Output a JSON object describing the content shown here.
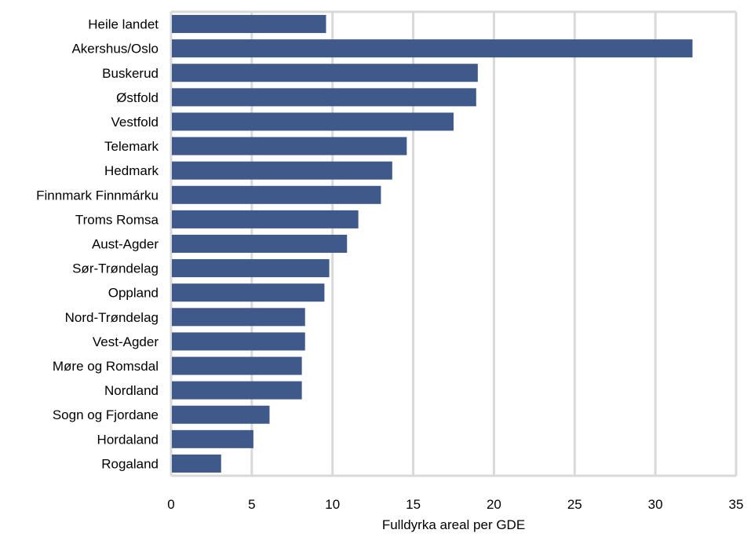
{
  "chart_data": {
    "type": "bar",
    "orientation": "horizontal",
    "categories": [
      "Heile landet",
      "Akershus/Oslo",
      "Buskerud",
      "Østfold",
      "Vestfold",
      "Telemark",
      "Hedmark",
      "Finnmark Finnmárku",
      "Troms Romsa",
      "Aust-Agder",
      "Sør-Trøndelag",
      "Oppland",
      "Nord-Trøndelag",
      "Vest-Agder",
      "Møre og Romsdal",
      "Nordland",
      "Sogn og Fjordane",
      "Hordaland",
      "Rogaland"
    ],
    "values": [
      9.6,
      32.3,
      19.0,
      18.9,
      17.5,
      14.6,
      13.7,
      13.0,
      11.6,
      10.9,
      9.8,
      9.5,
      8.3,
      8.3,
      8.1,
      8.1,
      6.1,
      5.1,
      3.1
    ],
    "xlabel": "Fulldyrka areal per GDE",
    "ylabel": "",
    "xlim": [
      0,
      35
    ],
    "xticks": [
      "0",
      "5",
      "10",
      "15",
      "20",
      "25",
      "30",
      "35"
    ],
    "grid": "vertical",
    "bar_color": "#3F5A8A",
    "grid_color": "#D9D9D9",
    "legend": "none"
  }
}
